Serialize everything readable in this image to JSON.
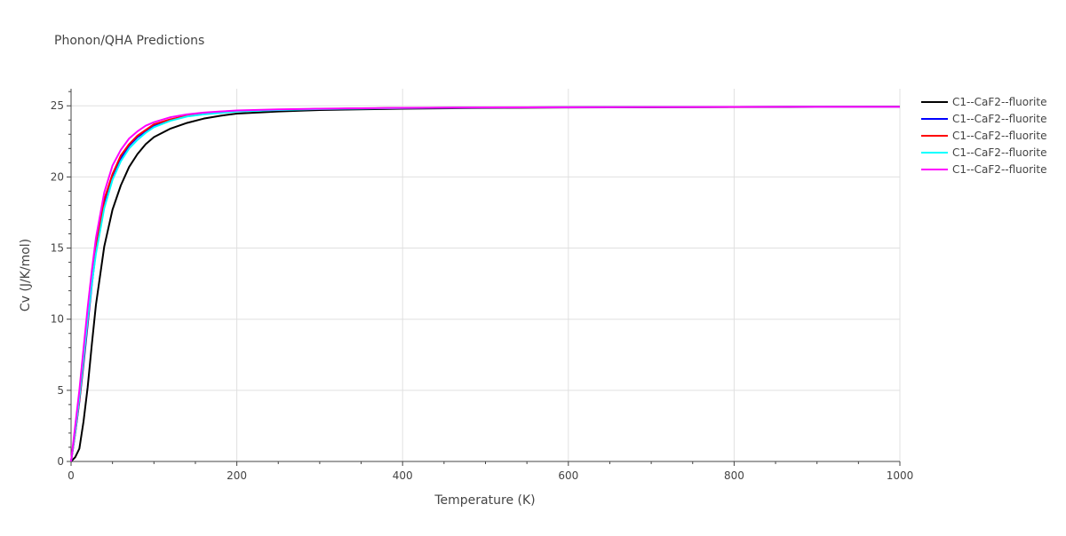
{
  "chart_data": {
    "type": "line",
    "title": "Phonon/QHA Predictions",
    "xlabel": "Temperature (K)",
    "ylabel": "Cv (J/K/mol)",
    "xlim": [
      0,
      1000
    ],
    "ylim": [
      0,
      26.2
    ],
    "xticks": [
      0,
      200,
      400,
      600,
      800,
      1000
    ],
    "xtick_labels": [
      "0",
      "200",
      "400",
      "600",
      "800",
      "1000"
    ],
    "yticks": [
      0,
      5,
      10,
      15,
      20,
      25
    ],
    "ytick_labels": [
      "0",
      "5",
      "10",
      "15",
      "20",
      "25"
    ],
    "grid": true,
    "legend_position": "top-right",
    "series": [
      {
        "name": "C1--CaF2--fluorite",
        "color": "#000000",
        "x": [
          0,
          5,
          10,
          15,
          20,
          25,
          30,
          40,
          50,
          60,
          70,
          80,
          90,
          100,
          120,
          140,
          160,
          180,
          200,
          250,
          300,
          400,
          500,
          600,
          700,
          800,
          900,
          1000
        ],
        "y": [
          0,
          0.3,
          0.9,
          2.8,
          5.2,
          8.2,
          11.0,
          15.1,
          17.7,
          19.4,
          20.7,
          21.6,
          22.3,
          22.8,
          23.4,
          23.8,
          24.1,
          24.3,
          24.45,
          24.6,
          24.7,
          24.8,
          24.85,
          24.88,
          24.9,
          24.91,
          24.92,
          24.93
        ]
      },
      {
        "name": "C1--CaF2--fluorite",
        "color": "#0000ff",
        "x": [
          0,
          5,
          10,
          15,
          20,
          25,
          30,
          40,
          50,
          60,
          70,
          80,
          90,
          100,
          120,
          140,
          160,
          180,
          200,
          250,
          300,
          400,
          500,
          600,
          700,
          800,
          900,
          1000
        ],
        "y": [
          0,
          2.0,
          4.2,
          6.8,
          9.6,
          12.4,
          14.8,
          18.2,
          20.0,
          21.3,
          22.2,
          22.8,
          23.2,
          23.6,
          24.0,
          24.3,
          24.45,
          24.55,
          24.62,
          24.72,
          24.78,
          24.85,
          24.88,
          24.9,
          24.91,
          24.92,
          24.93,
          24.93
        ]
      },
      {
        "name": "C1--CaF2--fluorite",
        "color": "#ff0000",
        "x": [
          0,
          5,
          10,
          15,
          20,
          25,
          30,
          40,
          50,
          60,
          70,
          80,
          90,
          100,
          120,
          140,
          160,
          180,
          200,
          250,
          300,
          400,
          500,
          600,
          700,
          800,
          900,
          1000
        ],
        "y": [
          0,
          2.0,
          4.3,
          7.0,
          9.8,
          12.6,
          15.0,
          18.4,
          20.2,
          21.5,
          22.3,
          22.9,
          23.3,
          23.7,
          24.05,
          24.3,
          24.45,
          24.55,
          24.62,
          24.72,
          24.78,
          24.85,
          24.88,
          24.9,
          24.91,
          24.92,
          24.93,
          24.93
        ]
      },
      {
        "name": "C1--CaF2--fluorite",
        "color": "#00ffff",
        "x": [
          0,
          5,
          10,
          15,
          20,
          25,
          30,
          40,
          50,
          60,
          70,
          80,
          90,
          100,
          120,
          140,
          160,
          180,
          200,
          250,
          300,
          400,
          500,
          600,
          700,
          800,
          900,
          1000
        ],
        "y": [
          0,
          2.1,
          4.5,
          7.2,
          10.0,
          12.5,
          14.6,
          17.8,
          19.8,
          21.1,
          22.0,
          22.6,
          23.1,
          23.5,
          23.95,
          24.25,
          24.4,
          24.5,
          24.6,
          24.7,
          24.77,
          24.84,
          24.88,
          24.9,
          24.91,
          24.92,
          24.93,
          24.93
        ]
      },
      {
        "name": "C1--CaF2--fluorite",
        "color": "#ff00ff",
        "x": [
          0,
          5,
          10,
          15,
          20,
          25,
          30,
          40,
          50,
          60,
          70,
          80,
          90,
          100,
          120,
          140,
          160,
          180,
          200,
          250,
          300,
          400,
          500,
          600,
          700,
          800,
          900,
          1000
        ],
        "y": [
          0,
          2.5,
          5.0,
          7.9,
          10.8,
          13.4,
          15.7,
          18.9,
          20.8,
          21.9,
          22.7,
          23.2,
          23.6,
          23.85,
          24.2,
          24.4,
          24.52,
          24.6,
          24.67,
          24.75,
          24.8,
          24.86,
          24.89,
          24.9,
          24.91,
          24.92,
          24.93,
          24.93
        ]
      }
    ]
  }
}
